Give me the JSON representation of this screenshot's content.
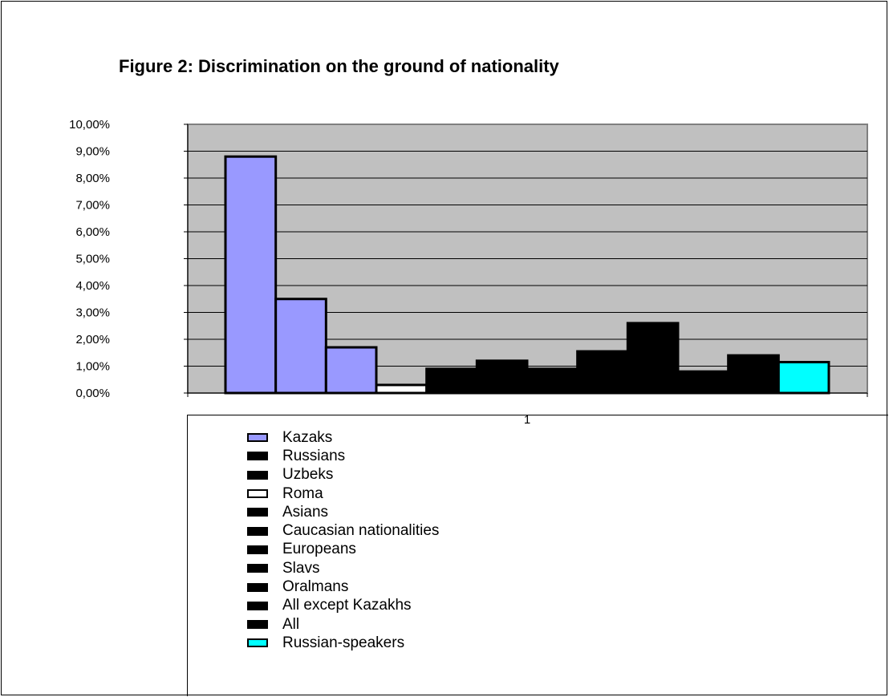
{
  "chart_data": {
    "type": "bar",
    "title": "Figure 2: Discrimination on the ground of nationality",
    "categories": [
      "1"
    ],
    "ylim": [
      0,
      10
    ],
    "y_ticks": [
      "0,00%",
      "1,00%",
      "2,00%",
      "3,00%",
      "4,00%",
      "5,00%",
      "6,00%",
      "7,00%",
      "8,00%",
      "9,00%",
      "10,00%"
    ],
    "grid": true,
    "legend_position": "bottom",
    "series": [
      {
        "name": "Kazaks",
        "values": [
          8.8
        ],
        "color": "#9999ff"
      },
      {
        "name": "Russians",
        "values": [
          3.5
        ],
        "color": "#9999ff",
        "legend_color": "#000000"
      },
      {
        "name": "Uzbeks",
        "values": [
          1.7
        ],
        "color": "#9999ff",
        "legend_color": "#000000"
      },
      {
        "name": "Roma",
        "values": [
          0.3
        ],
        "color": "#ffffff"
      },
      {
        "name": "Asians",
        "values": [
          0.9
        ],
        "color": "#000000"
      },
      {
        "name": "Caucasian nationalities",
        "values": [
          1.2
        ],
        "color": "#000000"
      },
      {
        "name": "Europeans",
        "values": [
          0.9
        ],
        "color": "#000000"
      },
      {
        "name": "Slavs",
        "values": [
          1.55
        ],
        "color": "#000000"
      },
      {
        "name": "Oralmans",
        "values": [
          2.6
        ],
        "color": "#000000"
      },
      {
        "name": "All except Kazakhs",
        "values": [
          0.8
        ],
        "color": "#000000"
      },
      {
        "name": "All",
        "values": [
          1.4
        ],
        "color": "#000000"
      },
      {
        "name": "Russian-speakers",
        "values": [
          1.15
        ],
        "color": "#00ffff"
      }
    ],
    "plot_background": "#c0c0c0"
  }
}
